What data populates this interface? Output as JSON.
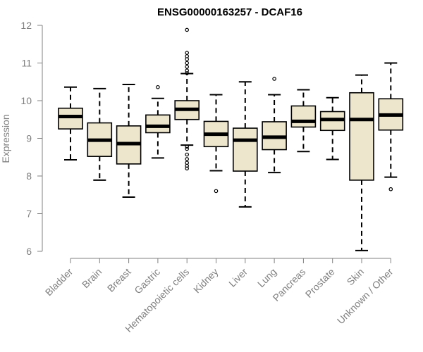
{
  "chart_data": {
    "type": "boxplot",
    "title": "ENSG00000163257 - DCAF16",
    "xlabel": "",
    "ylabel": "Expression",
    "ylim": [
      6,
      12
    ],
    "yticks": [
      "6",
      "7",
      "8",
      "9",
      "10",
      "11",
      "12"
    ],
    "grid": false,
    "colors": {
      "box_fill": "#ede6cd",
      "box_stroke": "#000000",
      "median": "#000000",
      "axis": "#808080",
      "text": "#808080",
      "title": "#000000"
    },
    "categories": [
      "Bladder",
      "Brain",
      "Breast",
      "Gastric",
      "Hematopoietic cells",
      "Kidney",
      "Liver",
      "Lung",
      "Pancreas",
      "Prostate",
      "Skin",
      "Unknown / Other"
    ],
    "boxes": [
      {
        "name": "Bladder",
        "whisker_low": 8.43,
        "q1": 9.25,
        "median": 9.58,
        "q3": 9.8,
        "whisker_high": 10.36,
        "outliers": []
      },
      {
        "name": "Brain",
        "whisker_low": 7.89,
        "q1": 8.52,
        "median": 8.95,
        "q3": 9.41,
        "whisker_high": 10.32,
        "outliers": []
      },
      {
        "name": "Breast",
        "whisker_low": 7.44,
        "q1": 8.32,
        "median": 8.86,
        "q3": 9.33,
        "whisker_high": 10.43,
        "outliers": []
      },
      {
        "name": "Gastric",
        "whisker_low": 8.48,
        "q1": 9.15,
        "median": 9.32,
        "q3": 9.62,
        "whisker_high": 10.06,
        "outliers": [
          10.36
        ]
      },
      {
        "name": "Hematopoietic cells",
        "whisker_low": 8.82,
        "q1": 9.5,
        "median": 9.77,
        "q3": 10.0,
        "whisker_high": 10.72,
        "outliers": [
          8.2,
          8.27,
          8.35,
          8.45,
          8.57,
          8.72,
          8.78,
          10.73,
          10.8,
          10.9,
          11.0,
          11.1,
          11.18,
          11.27,
          11.88
        ]
      },
      {
        "name": "Kidney",
        "whisker_low": 8.14,
        "q1": 8.78,
        "median": 9.11,
        "q3": 9.45,
        "whisker_high": 10.16,
        "outliers": [
          7.6
        ]
      },
      {
        "name": "Liver",
        "whisker_low": 7.18,
        "q1": 8.13,
        "median": 8.95,
        "q3": 9.27,
        "whisker_high": 10.5,
        "outliers": []
      },
      {
        "name": "Lung",
        "whisker_low": 8.09,
        "q1": 8.7,
        "median": 9.03,
        "q3": 9.44,
        "whisker_high": 10.16,
        "outliers": [
          10.58
        ]
      },
      {
        "name": "Pancreas",
        "whisker_low": 8.65,
        "q1": 9.3,
        "median": 9.45,
        "q3": 9.86,
        "whisker_high": 10.29,
        "outliers": []
      },
      {
        "name": "Prostate",
        "whisker_low": 8.44,
        "q1": 9.21,
        "median": 9.5,
        "q3": 9.71,
        "whisker_high": 10.08,
        "outliers": []
      },
      {
        "name": "Skin",
        "whisker_low": 6.02,
        "q1": 7.89,
        "median": 9.5,
        "q3": 10.21,
        "whisker_high": 10.68,
        "outliers": []
      },
      {
        "name": "Unknown / Other",
        "whisker_low": 7.97,
        "q1": 9.22,
        "median": 9.62,
        "q3": 10.05,
        "whisker_high": 11.0,
        "outliers": [
          7.65
        ]
      }
    ]
  }
}
